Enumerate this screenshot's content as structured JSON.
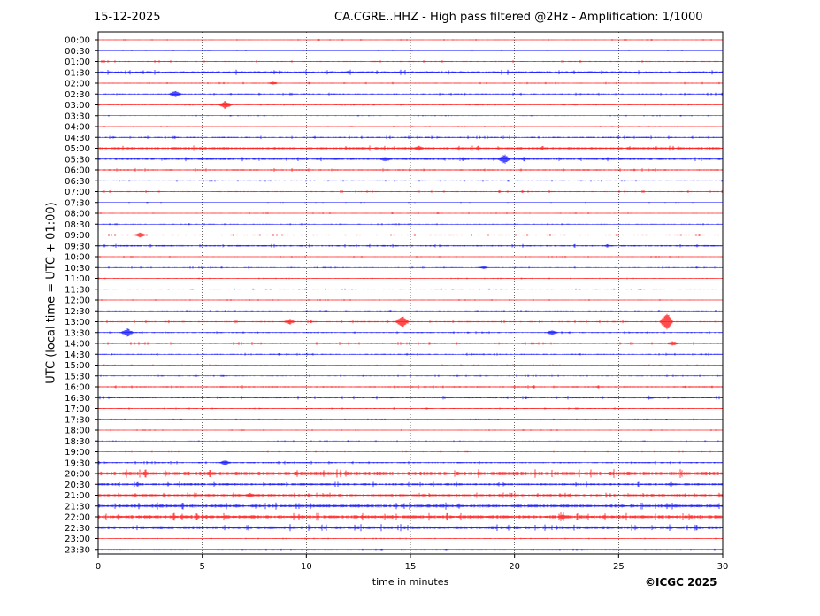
{
  "header": {
    "date": "15-12-2025",
    "title": "CA.CGRE..HHZ - High pass filtered @2Hz - Amplification: 1/1000"
  },
  "footer": {
    "copyright": "©ICGC 2025"
  },
  "chart_data": {
    "type": "line",
    "title": "CA.CGRE..HHZ - High pass filtered @2Hz - Amplification: 1/1000",
    "xlabel": "time in minutes",
    "ylabel": "UTC (local time = UTC + 01:00)",
    "xlim": [
      0,
      30
    ],
    "x_ticks": [
      0,
      5,
      10,
      15,
      20,
      25,
      30
    ],
    "x_gridlines": [
      5,
      10,
      15,
      20,
      25
    ],
    "grid": "vertical dotted",
    "colors": {
      "odd_hour_rows": "#ff0000",
      "half_hour_rows": "#0000ff"
    },
    "rows": [
      "00:00",
      "00:30",
      "01:00",
      "01:30",
      "02:00",
      "02:30",
      "03:00",
      "03:30",
      "04:00",
      "04:30",
      "05:00",
      "05:30",
      "06:00",
      "06:30",
      "07:00",
      "07:30",
      "08:00",
      "08:30",
      "09:00",
      "09:30",
      "10:00",
      "10:30",
      "11:00",
      "11:30",
      "12:00",
      "12:30",
      "13:00",
      "13:30",
      "14:00",
      "14:30",
      "15:00",
      "15:30",
      "16:00",
      "16:30",
      "17:00",
      "17:30",
      "18:00",
      "18:30",
      "19:00",
      "19:30",
      "20:00",
      "20:30",
      "21:00",
      "21:30",
      "22:00",
      "22:30",
      "23:00",
      "23:30"
    ],
    "row_colors": [
      "red",
      "blue",
      "red",
      "blue",
      "red",
      "blue",
      "red",
      "blue",
      "red",
      "blue",
      "red",
      "blue",
      "red",
      "blue",
      "red",
      "blue",
      "red",
      "blue",
      "red",
      "blue",
      "red",
      "blue",
      "red",
      "blue",
      "red",
      "blue",
      "red",
      "blue",
      "red",
      "blue",
      "red",
      "blue",
      "red",
      "blue",
      "red",
      "blue",
      "red",
      "blue",
      "red",
      "blue",
      "red",
      "blue",
      "red",
      "blue",
      "red",
      "blue",
      "red",
      "blue"
    ],
    "noise_level": [
      0.3,
      0.2,
      0.5,
      1.0,
      0.4,
      0.5,
      0.3,
      0.3,
      0.3,
      0.6,
      1.0,
      0.8,
      0.6,
      0.4,
      0.5,
      0.2,
      0.3,
      0.4,
      0.5,
      0.7,
      0.3,
      0.4,
      0.3,
      0.3,
      0.3,
      0.4,
      0.6,
      0.5,
      0.6,
      0.5,
      0.3,
      0.4,
      0.6,
      0.7,
      0.4,
      0.3,
      0.3,
      0.3,
      0.3,
      0.6,
      1.6,
      1.0,
      1.0,
      1.3,
      1.4,
      1.3,
      0.3,
      0.3
    ],
    "events": [
      {
        "row": "01:30",
        "x": 12.0,
        "amplitude": 2
      },
      {
        "row": "02:00",
        "x": 8.4,
        "amplitude": 2
      },
      {
        "row": "02:30",
        "x": 3.7,
        "amplitude": 4
      },
      {
        "row": "03:00",
        "x": 6.1,
        "amplitude": 5
      },
      {
        "row": "05:00",
        "x": 15.4,
        "amplitude": 3
      },
      {
        "row": "05:30",
        "x": 19.5,
        "amplitude": 6
      },
      {
        "row": "05:30",
        "x": 13.8,
        "amplitude": 3
      },
      {
        "row": "09:00",
        "x": 2.0,
        "amplitude": 3
      },
      {
        "row": "10:30",
        "x": 18.5,
        "amplitude": 2
      },
      {
        "row": "13:00",
        "x": 14.6,
        "amplitude": 7
      },
      {
        "row": "13:00",
        "x": 27.3,
        "amplitude": 11
      },
      {
        "row": "13:00",
        "x": 9.2,
        "amplitude": 3
      },
      {
        "row": "13:30",
        "x": 1.4,
        "amplitude": 5
      },
      {
        "row": "13:30",
        "x": 21.8,
        "amplitude": 3
      },
      {
        "row": "14:00",
        "x": 27.6,
        "amplitude": 3
      },
      {
        "row": "16:30",
        "x": 26.5,
        "amplitude": 2
      },
      {
        "row": "19:30",
        "x": 6.1,
        "amplitude": 3
      },
      {
        "row": "21:00",
        "x": 7.3,
        "amplitude": 3
      },
      {
        "row": "22:00",
        "x": 22.3,
        "amplitude": 3
      }
    ]
  }
}
